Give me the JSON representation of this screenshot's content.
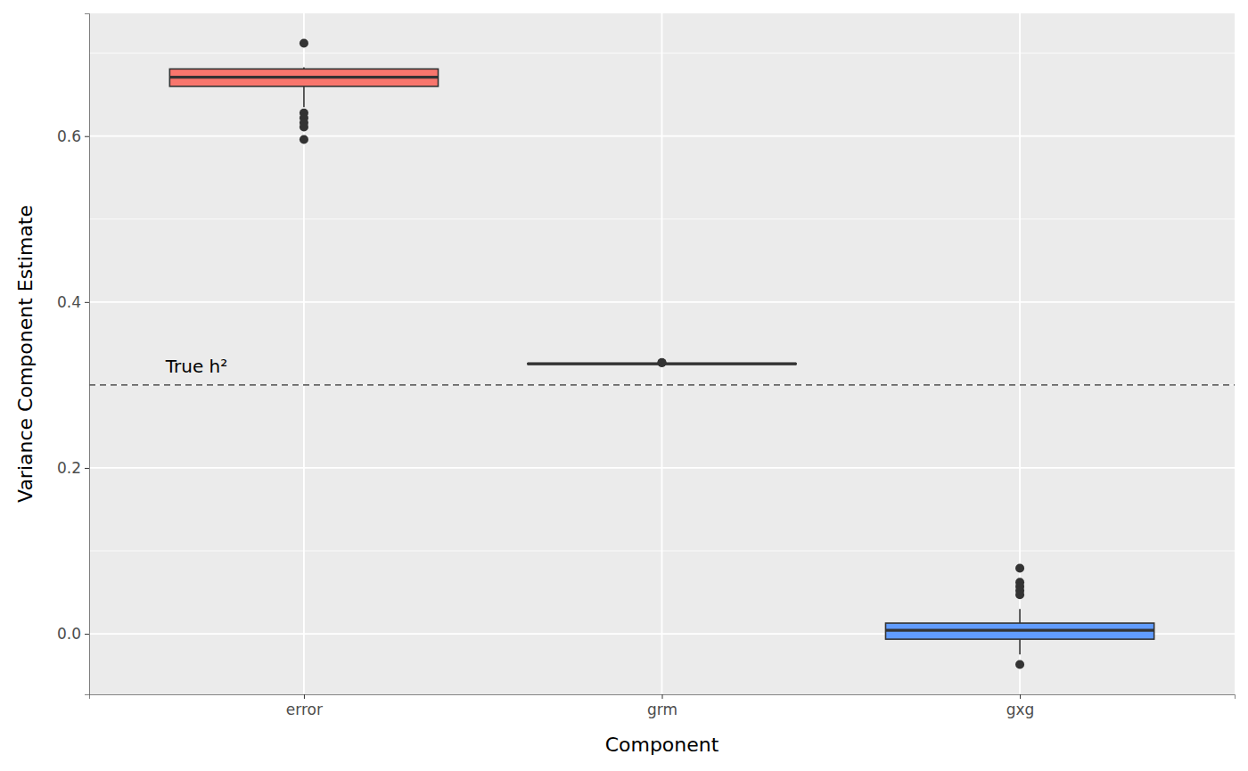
{
  "chart_data": {
    "type": "box",
    "x_label": "Component",
    "y_label": "Variance Component Estimate",
    "categories": [
      "error",
      "grm",
      "gxg"
    ],
    "colors": [
      "#F8766D",
      "#00BA38",
      "#619CFF"
    ],
    "boxes": [
      {
        "whisker_low": 0.635,
        "q1": 0.66,
        "median": 0.671,
        "q3": 0.681,
        "whisker_high": 0.683,
        "outliers": [
          0.712,
          0.628,
          0.622,
          0.616,
          0.611,
          0.596
        ]
      },
      {
        "whisker_low": 0.3245,
        "q1": 0.325,
        "median": 0.3255,
        "q3": 0.326,
        "whisker_high": 0.3265,
        "outliers": [
          0.327,
          0.3268
        ]
      },
      {
        "whisker_low": -0.025,
        "q1": -0.0065,
        "median": 0.0043,
        "q3": 0.0129,
        "whisker_high": 0.03,
        "outliers": [
          0.079,
          0.062,
          0.057,
          0.052,
          0.047,
          -0.037
        ]
      }
    ],
    "reference_line": {
      "value": 0.3,
      "label": "True h²"
    },
    "ylim": [
      -0.073,
      0.748
    ],
    "yticks": [
      {
        "value": 0,
        "label": "0.0"
      },
      {
        "value": 0.2,
        "label": "0.2"
      },
      {
        "value": 0.4,
        "label": "0.4"
      },
      {
        "value": 0.6,
        "label": "0.6"
      }
    ],
    "minor_yticks": [
      0.1,
      0.3,
      0.5,
      0.7
    ],
    "grid": true
  }
}
